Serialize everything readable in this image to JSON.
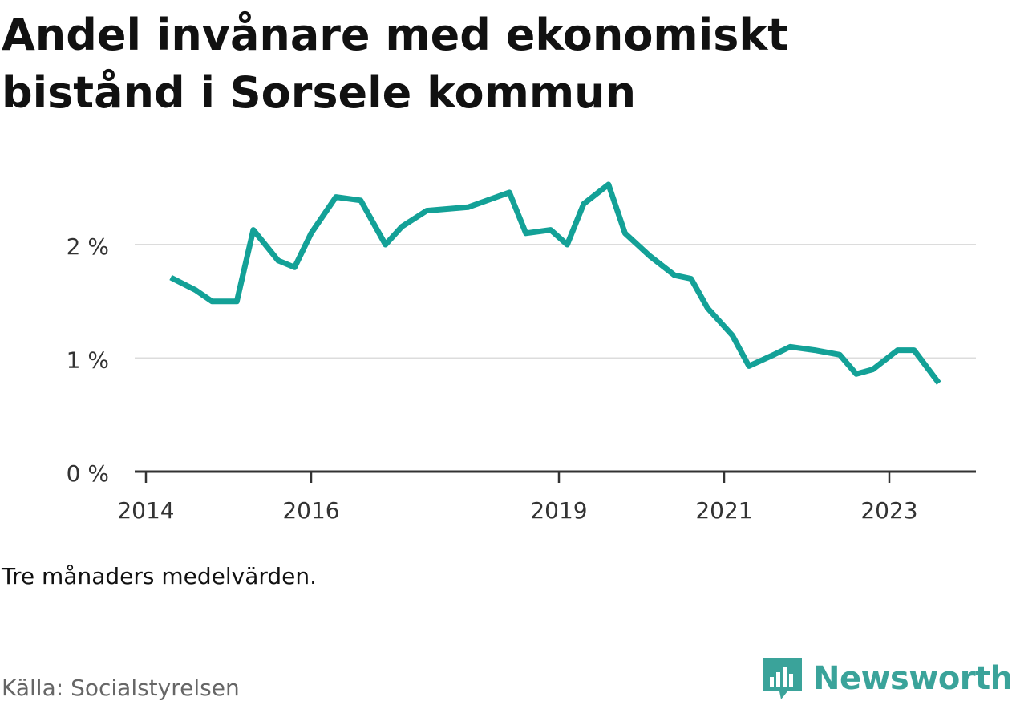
{
  "title": "Andel invånare med ekonomiskt bistånd i Sorsele kommun",
  "note": "Tre månaders medelvärden.",
  "source": "Källa: Socialstyrelsen",
  "brand": {
    "name": "Newsworthy",
    "icon": "newsworthy-logo-icon",
    "color": "#3aa39a"
  },
  "chart_data": {
    "type": "line",
    "ylim": [
      0,
      2.9
    ],
    "y_ticks": [
      {
        "value": 0,
        "label": "0 %"
      },
      {
        "value": 1,
        "label": "1 %"
      },
      {
        "value": 2,
        "label": "2 %"
      }
    ],
    "x_ticks": [
      {
        "value": 2014,
        "label": "2014"
      },
      {
        "value": 2016,
        "label": "2016"
      },
      {
        "value": 2019,
        "label": "2019"
      },
      {
        "value": 2021,
        "label": "2021"
      },
      {
        "value": 2023,
        "label": "2023"
      }
    ],
    "grid": true,
    "line_color": "#13a197",
    "x": [
      2014.3,
      2014.6,
      2014.8,
      2015.1,
      2015.3,
      2015.6,
      2015.8,
      2016.0,
      2016.3,
      2016.6,
      2016.9,
      2017.1,
      2017.4,
      2017.9,
      2018.4,
      2018.6,
      2018.9,
      2019.1,
      2019.3,
      2019.6,
      2019.8,
      2020.1,
      2020.4,
      2020.6,
      2020.8,
      2021.1,
      2021.3,
      2021.6,
      2021.8,
      2022.1,
      2022.4,
      2022.6,
      2022.8,
      2023.1,
      2023.3,
      2023.6
    ],
    "values": [
      1.71,
      1.6,
      1.5,
      1.5,
      2.13,
      1.86,
      1.8,
      2.1,
      2.42,
      2.39,
      2.0,
      2.16,
      2.3,
      2.33,
      2.46,
      2.1,
      2.13,
      2.0,
      2.36,
      2.53,
      2.1,
      1.9,
      1.73,
      1.7,
      1.44,
      1.2,
      0.93,
      1.03,
      1.1,
      1.07,
      1.03,
      0.86,
      0.9,
      1.07,
      1.07,
      0.78
    ]
  }
}
